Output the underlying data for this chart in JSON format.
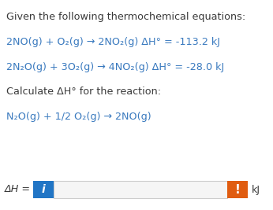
{
  "bg_color": "#ffffff",
  "text_color": "#3a7abf",
  "dark_text": "#3a3a3a",
  "line1": "Given the following thermochemical equations:",
  "line3": "Calculate ΔH° for the reaction:",
  "delta_h_label": "ΔH = ",
  "kj_label": "kJ",
  "blue_color": "#2175c5",
  "orange_color": "#e05c10",
  "input_bg": "#f5f5f5",
  "input_border": "#cccccc",
  "fig_width": 3.46,
  "fig_height": 2.67,
  "dpi": 100
}
